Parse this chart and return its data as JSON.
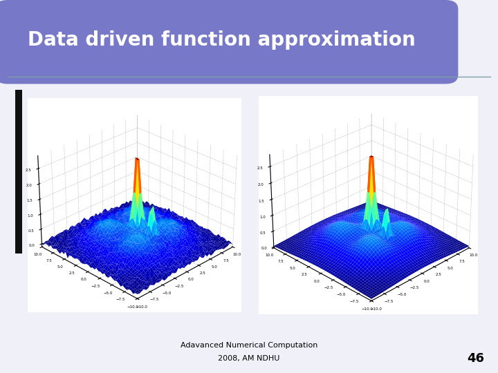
{
  "title": "Data driven function approximation",
  "footer_line1": "Adavanced Numerical Computation",
  "footer_line2": "2008, AM NDHU",
  "page_number": "46",
  "bg_color": "#ffffff",
  "slide_bg": "#f0f0f8",
  "header_color": "#7878c8",
  "border_color": "#7aa0a8",
  "black_bar_color": "#111111",
  "title_font_color": "#ffffff",
  "title_fontsize": 20,
  "footer_fontsize": 8,
  "page_num_fontsize": 13
}
